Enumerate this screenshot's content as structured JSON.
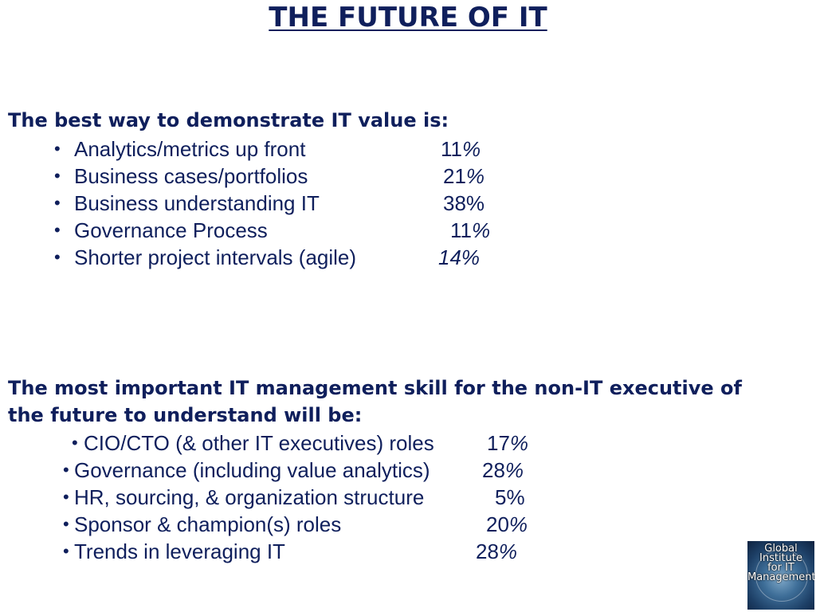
{
  "title": "THE FUTURE OF IT",
  "section1": {
    "heading": "The best way to demonstrate IT value is:",
    "items": [
      {
        "label": "Analytics/metrics up front",
        "pct_num": "11",
        "pct_sign": "%"
      },
      {
        "label": "Business cases/portfolios",
        "pct_num": "21",
        "pct_sign": "%"
      },
      {
        "label": "Business understanding IT",
        "pct_num": "38",
        "pct_sign": "%"
      },
      {
        "label": "Governance Process",
        "pct_num": "11",
        "pct_sign": "%"
      },
      {
        "label": "Shorter project intervals (agile)",
        "pct_num": "14",
        "pct_sign": "%"
      }
    ]
  },
  "section2": {
    "heading_line1": "The most important IT management skill for the non-IT executive of",
    "heading_line2": "the future to understand will be:",
    "items": [
      {
        "label": "CIO/CTO (& other IT executives) roles",
        "pct_num": "17",
        "pct_sign": "%"
      },
      {
        "label": "Governance (including value analytics)",
        "pct_num": "28",
        "pct_sign": "%"
      },
      {
        "label": "HR, sourcing, & organization structure",
        "pct_num": "5",
        "pct_sign": "%"
      },
      {
        "label": "Sponsor & champion(s) roles",
        "pct_num": "20",
        "pct_sign": "%"
      },
      {
        "label": "Trends in leveraging IT",
        "pct_num": "28",
        "pct_sign": "%"
      }
    ]
  },
  "logo": {
    "line1": "Global",
    "line2": "Institute",
    "line3": "for IT",
    "line4": "Management"
  }
}
